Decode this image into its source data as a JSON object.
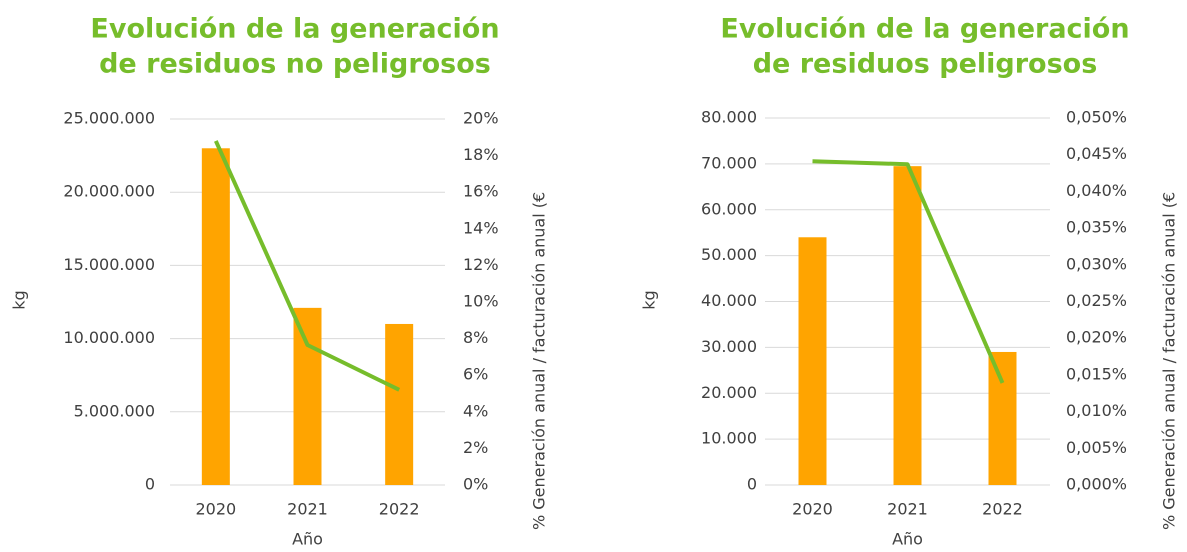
{
  "chart_data": [
    {
      "type": "bar+line",
      "title": [
        "Evolución de la generación",
        "de residuos no peligrosos"
      ],
      "x_label": "Año",
      "y_label": "kg",
      "y2_label": "% Generación anual / facturación anual (€",
      "categories": [
        "2020",
        "2021",
        "2022"
      ],
      "series": [
        {
          "type": "bar",
          "color": "#ffa400",
          "values": [
            23000000,
            12100000,
            11000000
          ]
        },
        {
          "type": "line",
          "axis": "y2",
          "color": "#76bd2b",
          "values": [
            18.8,
            7.65,
            5.2
          ]
        }
      ],
      "ylim": [
        0,
        25000000
      ],
      "yticks": [
        0,
        {
          "value": 5000000,
          "label": "5.000.000"
        },
        {
          "value": 10000000,
          "label": "10.000.000"
        },
        {
          "value": 15000000,
          "label": "15.000.000"
        },
        {
          "value": 20000000,
          "label": "20.000.000"
        },
        {
          "value": 25000000,
          "label": "25.000.000"
        }
      ],
      "y2lim": [
        0,
        20
      ],
      "y2ticks": [
        {
          "value": 0,
          "label": "0%"
        },
        {
          "value": 2,
          "label": "2%"
        },
        {
          "value": 4,
          "label": "4%"
        },
        {
          "value": 6,
          "label": "6%"
        },
        {
          "value": 8,
          "label": "8%"
        },
        {
          "value": 10,
          "label": "10%"
        },
        {
          "value": 12,
          "label": "12%"
        },
        {
          "value": 14,
          "label": "14%"
        },
        {
          "value": 16,
          "label": "16%"
        },
        {
          "value": 18,
          "label": "18%"
        },
        {
          "value": 20,
          "label": "20%"
        }
      ],
      "grid": true
    },
    {
      "type": "bar+line",
      "title": [
        "Evolución de la generación",
        "de residuos peligrosos"
      ],
      "x_label": "Año",
      "y_label": "kg",
      "y2_label": "% Generación anual / facturación anual (€",
      "categories": [
        "2020",
        "2021",
        "2022"
      ],
      "series": [
        {
          "type": "bar",
          "color": "#ffa400",
          "values": [
            54000,
            69500,
            29000
          ]
        },
        {
          "type": "line",
          "axis": "y2",
          "color": "#76bd2b",
          "values": [
            0.0441,
            0.0437,
            0.0139
          ]
        }
      ],
      "ylim": [
        0,
        80000
      ],
      "yticks": [
        0,
        {
          "value": 10000,
          "label": "10.000"
        },
        {
          "value": 20000,
          "label": "20.000"
        },
        {
          "value": 30000,
          "label": "30.000"
        },
        {
          "value": 40000,
          "label": "40.000"
        },
        {
          "value": 50000,
          "label": "50.000"
        },
        {
          "value": 60000,
          "label": "60.000"
        },
        {
          "value": 70000,
          "label": "70.000"
        },
        {
          "value": 80000,
          "label": "80.000"
        }
      ],
      "y2lim": [
        0,
        0.05
      ],
      "y2ticks": [
        {
          "value": 0,
          "label": "0,000%"
        },
        {
          "value": 0.005,
          "label": "0,005%"
        },
        {
          "value": 0.01,
          "label": "0,010%"
        },
        {
          "value": 0.015,
          "label": "0,015%"
        },
        {
          "value": 0.02,
          "label": "0,020%"
        },
        {
          "value": 0.025,
          "label": "0,025%"
        },
        {
          "value": 0.03,
          "label": "0,030%"
        },
        {
          "value": 0.035,
          "label": "0,035%"
        },
        {
          "value": 0.04,
          "label": "0,040%"
        },
        {
          "value": 0.045,
          "label": "0,045%"
        },
        {
          "value": 0.05,
          "label": "0,050%"
        }
      ],
      "grid": true
    }
  ]
}
